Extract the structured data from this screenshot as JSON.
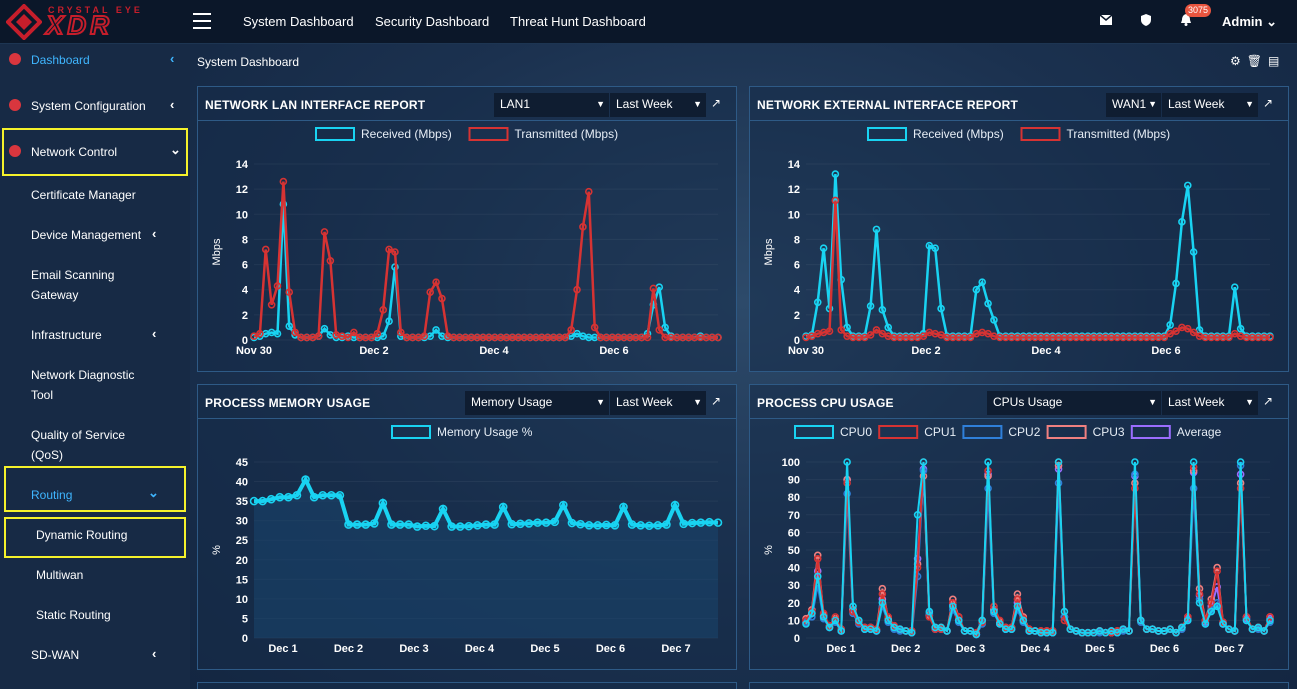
{
  "brand": {
    "line1": "CRYSTAL EYE",
    "line2": "XDR"
  },
  "topnav": [
    "System Dashboard",
    "Security Dashboard",
    "Threat Hunt Dashboard"
  ],
  "notifications": {
    "count": "3075"
  },
  "user": {
    "name": "Admin"
  },
  "sidebar": {
    "dashboard": "Dashboard",
    "system_configuration": "System Configuration",
    "network_control": "Network Control",
    "certificate_manager": "Certificate Manager",
    "device_management": "Device Management",
    "email_scanning_1": "Email Scanning",
    "email_scanning_2": "Gateway",
    "infrastructure": "Infrastructure",
    "network_diag_1": "Network Diagnostic",
    "network_diag_2": "Tool",
    "qos_1": "Quality of Service",
    "qos_2": "(QoS)",
    "routing": "Routing",
    "dynamic_routing": "Dynamic Routing",
    "multiwan": "Multiwan",
    "static_routing": "Static Routing",
    "sdwan": "SD-WAN"
  },
  "page": {
    "title": "System Dashboard"
  },
  "panels": {
    "lan": {
      "title": "NETWORK LAN INTERFACE REPORT",
      "iface": "LAN1",
      "range": "Last Week"
    },
    "wan": {
      "title": "NETWORK EXTERNAL INTERFACE REPORT",
      "iface": "WAN1",
      "range": "Last Week"
    },
    "mem": {
      "title": "PROCESS MEMORY USAGE",
      "metric": "Memory Usage",
      "range": "Last Week"
    },
    "cpu": {
      "title": "PROCESS CPU USAGE",
      "metric": "CPUs Usage",
      "range": "Last Week"
    }
  },
  "colors": {
    "cyan": "#19d3f2",
    "red": "#d63333",
    "blue": "#2f7fd9",
    "pink": "#f08080",
    "purple": "#9b6dff",
    "accent_yellow": "#f5f22b"
  },
  "chart_data": [
    {
      "type": "line",
      "ylabel": "Mbps",
      "ylim": [
        0,
        14
      ],
      "yticks": [
        0,
        2,
        4,
        6,
        8,
        10,
        12,
        14
      ],
      "xtick_labels": [
        "Nov 30",
        "Dec 2",
        "Dec 4",
        "Dec 6"
      ],
      "series": [
        {
          "name": "Received (Mbps)",
          "color": "#19d3f2",
          "values": [
            0.2,
            0.3,
            0.5,
            0.6,
            0.5,
            10.8,
            1.1,
            0.4,
            0.2,
            0.2,
            0.2,
            0.3,
            0.9,
            0.4,
            0.2,
            0.2,
            0.3,
            0.2,
            0.2,
            0.2,
            0.2,
            0.2,
            0.3,
            1.5,
            5.8,
            0.3,
            0.2,
            0.2,
            0.2,
            0.2,
            0.3,
            0.8,
            0.3,
            0.2,
            0.2,
            0.2,
            0.2,
            0.2,
            0.2,
            0.2,
            0.2,
            0.2,
            0.2,
            0.2,
            0.2,
            0.2,
            0.2,
            0.2,
            0.2,
            0.2,
            0.2,
            0.2,
            0.2,
            0.2,
            0.3,
            0.5,
            0.3,
            0.2,
            0.2,
            0.2,
            0.2,
            0.2,
            0.2,
            0.2,
            0.2,
            0.2,
            0.2,
            0.5,
            2.8,
            4.2,
            1.0,
            0.3,
            0.2,
            0.2,
            0.2,
            0.2,
            0.3,
            0.2,
            0.2,
            0.2
          ]
        },
        {
          "name": "Transmitted (Mbps)",
          "color": "#d63333",
          "values": [
            0.3,
            0.5,
            7.2,
            2.8,
            4.3,
            12.6,
            3.8,
            0.6,
            0.2,
            0.2,
            0.2,
            0.3,
            8.6,
            6.3,
            0.4,
            0.3,
            0.2,
            0.6,
            0.2,
            0.2,
            0.2,
            0.5,
            2.4,
            7.2,
            7.0,
            0.6,
            0.2,
            0.2,
            0.2,
            0.3,
            3.8,
            4.6,
            3.3,
            0.3,
            0.2,
            0.2,
            0.2,
            0.2,
            0.2,
            0.2,
            0.2,
            0.2,
            0.2,
            0.2,
            0.2,
            0.2,
            0.2,
            0.2,
            0.2,
            0.2,
            0.2,
            0.2,
            0.2,
            0.2,
            0.8,
            4.0,
            9.0,
            11.8,
            1.0,
            0.2,
            0.2,
            0.2,
            0.2,
            0.2,
            0.2,
            0.2,
            0.2,
            0.2,
            4.1,
            0.8,
            0.2,
            0.2,
            0.2,
            0.2,
            0.2,
            0.2,
            0.2,
            0.2,
            0.2,
            0.2
          ]
        }
      ]
    },
    {
      "type": "line",
      "ylabel": "Mbps",
      "ylim": [
        0,
        14
      ],
      "yticks": [
        0,
        2,
        4,
        6,
        8,
        10,
        12,
        14
      ],
      "xtick_labels": [
        "Nov 30",
        "Dec 2",
        "Dec 4",
        "Dec 6"
      ],
      "series": [
        {
          "name": "Received (Mbps)",
          "color": "#19d3f2",
          "values": [
            0.3,
            0.4,
            3.0,
            7.3,
            2.5,
            13.2,
            4.8,
            1.0,
            0.3,
            0.3,
            0.3,
            2.7,
            8.8,
            2.4,
            1.0,
            0.3,
            0.3,
            0.3,
            0.3,
            0.3,
            0.5,
            7.5,
            7.3,
            2.5,
            0.3,
            0.3,
            0.3,
            0.3,
            0.3,
            4.0,
            4.6,
            2.9,
            1.6,
            0.3,
            0.3,
            0.3,
            0.3,
            0.3,
            0.3,
            0.3,
            0.3,
            0.3,
            0.3,
            0.3,
            0.3,
            0.3,
            0.3,
            0.3,
            0.3,
            0.3,
            0.3,
            0.3,
            0.3,
            0.3,
            0.3,
            0.3,
            0.3,
            0.3,
            0.3,
            0.3,
            0.3,
            0.3,
            1.2,
            4.5,
            9.4,
            12.3,
            7.0,
            0.8,
            0.3,
            0.3,
            0.3,
            0.3,
            0.3,
            4.2,
            0.9,
            0.3,
            0.3,
            0.3,
            0.3,
            0.3
          ]
        },
        {
          "name": "Transmitted (Mbps)",
          "color": "#d63333",
          "values": [
            0.2,
            0.3,
            0.5,
            0.6,
            0.7,
            11.1,
            0.8,
            0.3,
            0.2,
            0.2,
            0.2,
            0.4,
            0.8,
            0.5,
            0.3,
            0.2,
            0.2,
            0.2,
            0.2,
            0.2,
            0.3,
            0.6,
            0.5,
            0.4,
            0.2,
            0.2,
            0.2,
            0.2,
            0.2,
            0.5,
            0.6,
            0.5,
            0.3,
            0.2,
            0.2,
            0.2,
            0.2,
            0.2,
            0.2,
            0.2,
            0.2,
            0.2,
            0.2,
            0.2,
            0.2,
            0.2,
            0.2,
            0.2,
            0.2,
            0.2,
            0.2,
            0.2,
            0.2,
            0.2,
            0.2,
            0.2,
            0.2,
            0.2,
            0.2,
            0.2,
            0.2,
            0.2,
            0.5,
            0.7,
            1.0,
            0.9,
            0.6,
            0.3,
            0.2,
            0.2,
            0.2,
            0.2,
            0.2,
            0.5,
            0.3,
            0.2,
            0.2,
            0.2,
            0.2,
            0.2
          ]
        }
      ]
    },
    {
      "type": "area",
      "ylabel": "%",
      "ylim": [
        0,
        45
      ],
      "yticks": [
        0,
        5,
        10,
        15,
        20,
        25,
        30,
        35,
        40,
        45
      ],
      "xtick_labels": [
        "Dec 1",
        "Dec 2",
        "Dec 3",
        "Dec 4",
        "Dec 5",
        "Dec 6",
        "Dec 7"
      ],
      "series": [
        {
          "name": "Memory Usage %",
          "color": "#19d3f2",
          "values": [
            35,
            35,
            35.5,
            36,
            36,
            36.5,
            40.5,
            36,
            36.5,
            36.5,
            36.5,
            29,
            29,
            29,
            29.3,
            34.5,
            29,
            29,
            29,
            28.5,
            28.7,
            28.6,
            33,
            28.5,
            28.5,
            28.6,
            28.8,
            29,
            29,
            33.5,
            29.1,
            29.2,
            29.3,
            29.5,
            29.5,
            29.7,
            34,
            29.4,
            29.1,
            28.8,
            28.8,
            28.9,
            28.8,
            33.5,
            29,
            28.8,
            28.7,
            28.8,
            29,
            34,
            29.2,
            29.4,
            29.5,
            29.6,
            29.5
          ]
        }
      ]
    },
    {
      "type": "line",
      "ylabel": "%",
      "ylim": [
        0,
        100
      ],
      "yticks": [
        0,
        10,
        20,
        30,
        40,
        50,
        60,
        70,
        80,
        90,
        100
      ],
      "xtick_labels": [
        "Dec 1",
        "Dec 2",
        "Dec 3",
        "Dec 4",
        "Dec 5",
        "Dec 6",
        "Dec 7"
      ],
      "series": [
        {
          "name": "CPU0",
          "color": "#19d3f2",
          "values": [
            8,
            14,
            35,
            12,
            6,
            10,
            4,
            100,
            18,
            10,
            5,
            5,
            4,
            20,
            10,
            6,
            5,
            4,
            3,
            70,
            100,
            15,
            6,
            6,
            4,
            18,
            10,
            4,
            4,
            2,
            10,
            100,
            15,
            8,
            5,
            5,
            18,
            10,
            4,
            4,
            3,
            3,
            3,
            100,
            15,
            5,
            4,
            3,
            3,
            3,
            4,
            3,
            4,
            3,
            5,
            4,
            100,
            10,
            5,
            5,
            4,
            4,
            5,
            3,
            6,
            10,
            100,
            20,
            8,
            15,
            18,
            8,
            5,
            4,
            100,
            10,
            5,
            6,
            4,
            10
          ]
        },
        {
          "name": "CPU1",
          "color": "#d63333",
          "values": [
            10,
            15,
            45,
            14,
            7,
            12,
            5,
            88,
            15,
            9,
            6,
            6,
            5,
            25,
            12,
            7,
            5,
            4,
            4,
            40,
            100,
            12,
            5,
            5,
            4,
            20,
            12,
            4,
            4,
            3,
            9,
            95,
            18,
            10,
            6,
            6,
            22,
            11,
            5,
            4,
            4,
            4,
            4,
            100,
            10,
            5,
            4,
            3,
            3,
            3,
            4,
            3,
            3,
            4,
            5,
            4,
            85,
            10,
            5,
            5,
            4,
            4,
            5,
            3,
            6,
            12,
            97,
            25,
            10,
            20,
            38,
            9,
            5,
            4,
            85,
            12,
            5,
            6,
            4,
            12
          ]
        },
        {
          "name": "CPU2",
          "color": "#2f7fd9",
          "values": [
            9,
            12,
            30,
            11,
            6,
            9,
            4,
            82,
            14,
            8,
            5,
            5,
            4,
            18,
            9,
            5,
            4,
            4,
            3,
            35,
            95,
            14,
            5,
            5,
            4,
            16,
            9,
            4,
            4,
            2,
            8,
            85,
            14,
            8,
            5,
            5,
            16,
            9,
            4,
            4,
            3,
            3,
            3,
            88,
            12,
            5,
            4,
            3,
            3,
            3,
            3,
            3,
            4,
            3,
            4,
            4,
            93,
            9,
            5,
            5,
            4,
            4,
            5,
            3,
            5,
            10,
            85,
            22,
            8,
            16,
            20,
            8,
            5,
            4,
            98,
            10,
            5,
            5,
            4,
            9
          ]
        },
        {
          "name": "CPU3",
          "color": "#f08080",
          "values": [
            11,
            16,
            47,
            13,
            7,
            11,
            5,
            90,
            16,
            9,
            6,
            6,
            5,
            28,
            11,
            7,
            5,
            4,
            4,
            42,
            92,
            13,
            6,
            6,
            4,
            22,
            12,
            4,
            4,
            3,
            10,
            92,
            16,
            9,
            6,
            6,
            25,
            12,
            5,
            4,
            4,
            4,
            4,
            98,
            12,
            5,
            4,
            3,
            3,
            3,
            4,
            3,
            3,
            4,
            5,
            4,
            88,
            10,
            5,
            5,
            4,
            4,
            5,
            3,
            6,
            12,
            95,
            28,
            10,
            22,
            40,
            9,
            5,
            4,
            88,
            12,
            5,
            6,
            4,
            12
          ]
        },
        {
          "name": "Average",
          "color": "#9b6dff",
          "values": [
            9,
            14,
            38,
            12,
            6,
            10,
            4,
            90,
            16,
            9,
            5,
            5,
            4,
            22,
            10,
            6,
            5,
            4,
            3,
            45,
            96,
            13,
            5,
            5,
            4,
            19,
            10,
            4,
            4,
            2,
            9,
            93,
            16,
            9,
            5,
            5,
            20,
            10,
            4,
            4,
            3,
            3,
            3,
            96,
            12,
            5,
            4,
            3,
            3,
            3,
            4,
            3,
            3,
            3,
            5,
            4,
            92,
            10,
            5,
            5,
            4,
            4,
            5,
            3,
            6,
            11,
            94,
            24,
            9,
            18,
            29,
            8,
            5,
            4,
            93,
            11,
            5,
            6,
            4,
            11
          ]
        }
      ]
    }
  ]
}
